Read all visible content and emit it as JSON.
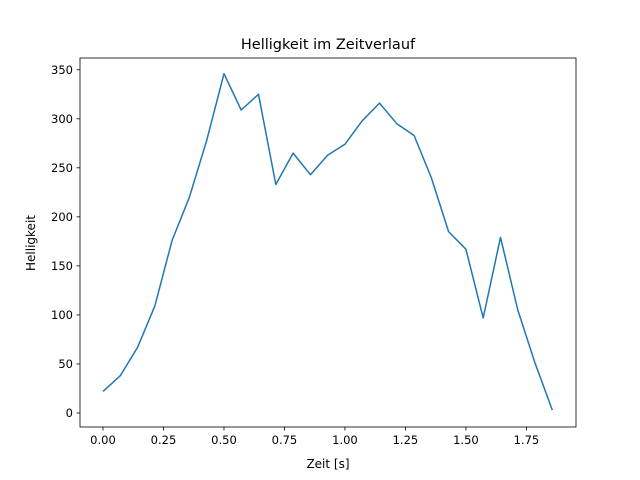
{
  "chart_data": {
    "type": "line",
    "title": "Helligkeit im Zeitverlauf",
    "xlabel": "Zeit [s]",
    "ylabel": "Helligkeit",
    "xlim": [
      -0.095,
      1.955
    ],
    "ylim": [
      -14.3,
      362
    ],
    "xticks": [
      0.0,
      0.25,
      0.5,
      0.75,
      1.0,
      1.25,
      1.5,
      1.75
    ],
    "xtick_labels": [
      "0.00",
      "0.25",
      "0.50",
      "0.75",
      "1.00",
      "1.25",
      "1.50",
      "1.75"
    ],
    "yticks": [
      0,
      50,
      100,
      150,
      200,
      250,
      300,
      350
    ],
    "ytick_labels": [
      "0",
      "50",
      "100",
      "150",
      "200",
      "250",
      "300",
      "350"
    ],
    "grid": false,
    "series": [
      {
        "name": "Helligkeit",
        "color": "#1f77b4",
        "x": [
          0.0,
          0.0714,
          0.1429,
          0.2143,
          0.2857,
          0.3571,
          0.4286,
          0.5,
          0.5714,
          0.6429,
          0.7143,
          0.7857,
          0.8571,
          0.9286,
          1.0,
          1.0714,
          1.1429,
          1.2143,
          1.2857,
          1.3571,
          1.4286,
          1.5,
          1.5714,
          1.6429,
          1.7143,
          1.7857,
          1.8571
        ],
        "y": [
          22,
          38,
          67,
          109,
          176,
          220,
          278,
          346,
          309,
          325,
          233,
          265,
          243,
          263,
          274,
          298,
          316,
          295,
          283,
          240,
          185,
          167,
          97,
          179,
          105,
          51,
          3
        ]
      }
    ]
  }
}
